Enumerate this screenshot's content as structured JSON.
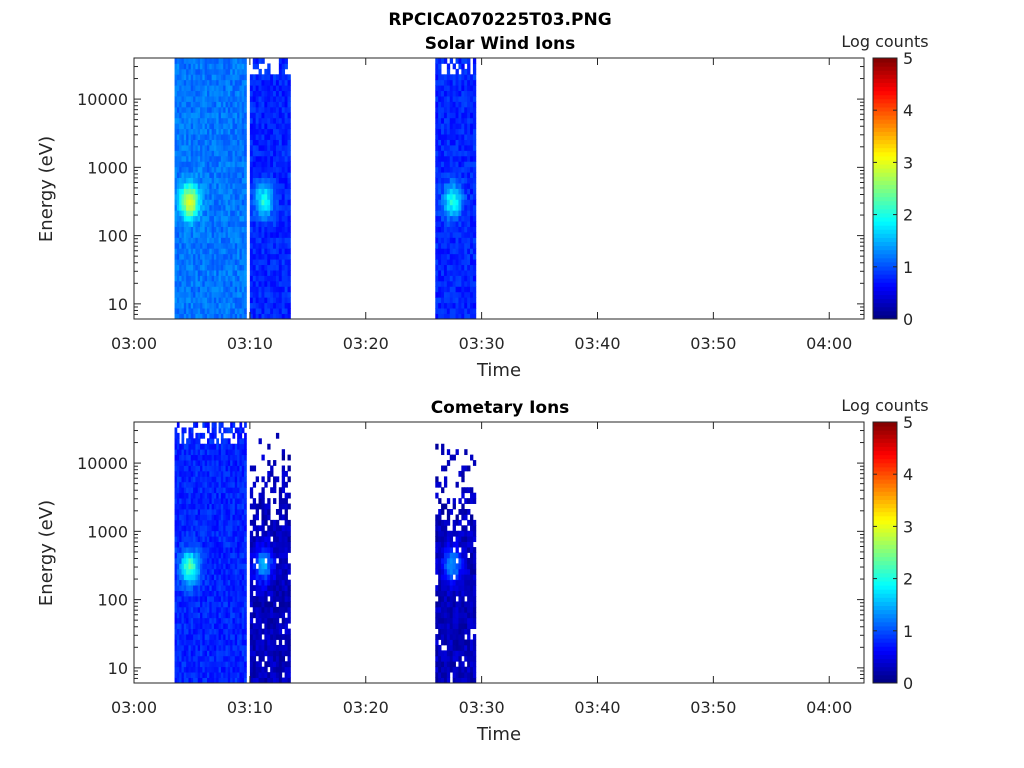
{
  "figure_title": "RPCICA070225T03.PNG",
  "chart_data": [
    {
      "type": "heatmap",
      "title": "Solar Wind Ions",
      "xlabel": "Time",
      "ylabel": "Energy (eV)",
      "colorbar_label": "Log counts",
      "y_scale": "log",
      "ylim": [
        6,
        40000
      ],
      "xlim": [
        "03:00",
        "04:03"
      ],
      "x_ticks": [
        "03:00",
        "03:10",
        "03:20",
        "03:30",
        "03:40",
        "03:50",
        "04:00"
      ],
      "y_ticks": [
        "10",
        "100",
        "1000",
        "10000"
      ],
      "y_tick_values": [
        10,
        100,
        1000,
        10000
      ],
      "clim": [
        0,
        5
      ],
      "colorbar_ticks": [
        "0",
        "1",
        "2",
        "3",
        "4",
        "5"
      ],
      "colormap": "jet",
      "data_blocks": [
        {
          "start": "03:03.5",
          "end": "03:09.7",
          "typical_log_counts": 1.2,
          "peak_log_counts": 3.1,
          "peak_time": "03:04.8",
          "peak_energy_eV": 320
        },
        {
          "start": "03:10.0",
          "end": "03:13.3",
          "typical_log_counts": 0.8,
          "peak_log_counts": 2.0,
          "peak_time": "03:11.2",
          "peak_energy_eV": 330
        },
        {
          "start": "03:26.0",
          "end": "03:29.3",
          "typical_log_counts": 0.8,
          "peak_log_counts": 2.0,
          "peak_time": "03:27.5",
          "peak_energy_eV": 330
        }
      ]
    },
    {
      "type": "heatmap",
      "title": "Cometary Ions",
      "xlabel": "Time",
      "ylabel": "Energy (eV)",
      "colorbar_label": "Log counts",
      "y_scale": "log",
      "ylim": [
        6,
        40000
      ],
      "xlim": [
        "03:00",
        "04:03"
      ],
      "x_ticks": [
        "03:00",
        "03:10",
        "03:20",
        "03:30",
        "03:40",
        "03:50",
        "04:00"
      ],
      "y_ticks": [
        "10",
        "100",
        "1000",
        "10000"
      ],
      "y_tick_values": [
        10,
        100,
        1000,
        10000
      ],
      "clim": [
        0,
        5
      ],
      "colorbar_ticks": [
        "0",
        "1",
        "2",
        "3",
        "4",
        "5"
      ],
      "colormap": "jet",
      "data_blocks": [
        {
          "start": "03:03.5",
          "end": "03:09.7",
          "typical_log_counts": 0.8,
          "peak_log_counts": 2.3,
          "peak_time": "03:04.8",
          "peak_energy_eV": 300
        },
        {
          "start": "03:10.0",
          "end": "03:13.3",
          "typical_log_counts": 0.3,
          "peak_log_counts": 1.5,
          "peak_time": "03:11.2",
          "peak_energy_eV": 330
        },
        {
          "start": "03:26.0",
          "end": "03:29.3",
          "typical_log_counts": 0.3,
          "peak_log_counts": 1.4,
          "peak_time": "03:27.5",
          "peak_energy_eV": 330
        }
      ]
    }
  ]
}
